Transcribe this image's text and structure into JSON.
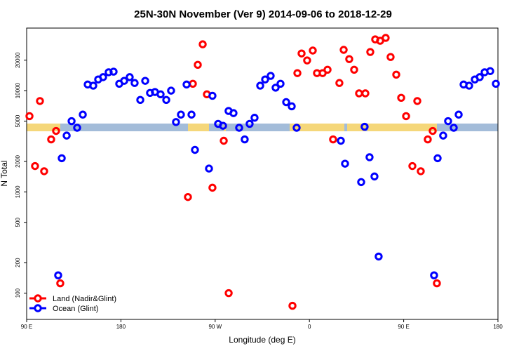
{
  "chart_data": {
    "type": "scatter",
    "title": "25N-30N November (Ver 9)   2014-09-06 to 2018-12-29",
    "x_label": "Longitude (deg E)",
    "y_label": "N Total",
    "log_y": true,
    "legend": "bottom-left",
    "xlim": [
      90,
      540
    ],
    "xticks": [
      {
        "value": 90,
        "label": "90 E"
      },
      180,
      {
        "value": 270,
        "label": "90 W"
      },
      {
        "value": 360,
        "label": "0"
      },
      {
        "value": 450,
        "label": "90 E"
      },
      {
        "value": 540,
        "label": "180"
      }
    ],
    "ylim": [
      55,
      41500
    ],
    "yticks": [
      100,
      200,
      500,
      1000,
      2000,
      5000,
      10000,
      20000
    ],
    "series": [
      {
        "name": "Land (Nadir&Glint)",
        "color": "#ff0000",
        "x": [
          92.7,
          98.0,
          102.7,
          106.7,
          113.4,
          118.1,
          122.1,
          244.0,
          248.7,
          253.4,
          258.1,
          262.1,
          267.4,
          278.2,
          282.9,
          343.8,
          348.5,
          352.5,
          357.8,
          363.2,
          367.2,
          372.6,
          377.3,
          382.6,
          388.6,
          392.7,
          398.0,
          402.7,
          407.4,
          413.4,
          418.1,
          422.8,
          427.5,
          432.8,
          437.5,
          442.9,
          447.6,
          452.3,
          458.3,
          463.0,
          466.3,
          473.0,
          477.7,
          481.7
        ],
        "values": [
          5600,
          1800,
          7900,
          1600,
          3300,
          4000,
          125,
          890,
          11700,
          18000,
          28700,
          9200,
          1100,
          3200,
          100,
          75,
          14900,
          23300,
          19900,
          24900,
          14900,
          14900,
          16100,
          3300,
          11900,
          25300,
          20500,
          16100,
          9400,
          9400,
          24100,
          32100,
          31100,
          33200,
          21500,
          14400,
          8500,
          5600,
          1800,
          7900,
          1600,
          3300,
          4000,
          125
        ]
      },
      {
        "name": "Ocean (Glint)",
        "color": "#0000ff",
        "x": [
          120.1,
          123.5,
          128.2,
          132.9,
          138.2,
          143.6,
          148.3,
          153.6,
          158.3,
          163.0,
          168.3,
          173.0,
          178.4,
          183.1,
          188.4,
          193.1,
          198.5,
          203.2,
          207.8,
          212.5,
          217.9,
          223.3,
          227.9,
          232.6,
          237.3,
          242.7,
          247.4,
          250.7,
          264.1,
          267.4,
          272.8,
          277.5,
          282.8,
          287.5,
          292.9,
          298.2,
          302.9,
          307.6,
          313.0,
          317.7,
          323.0,
          327.7,
          332.4,
          337.8,
          343.1,
          347.8,
          390.0,
          394.0,
          409.4,
          412.7,
          417.4,
          422.1,
          426.1,
          479.0,
          482.4,
          487.7,
          492.4,
          497.8,
          502.5,
          507.2,
          512.5,
          517.9,
          522.6,
          527.3,
          532.6,
          538.0
        ],
        "values": [
          150,
          2150,
          3600,
          5000,
          4300,
          5800,
          11500,
          11200,
          12900,
          13600,
          15200,
          15400,
          11700,
          12500,
          13600,
          11900,
          8100,
          12500,
          9500,
          9700,
          9200,
          8100,
          10000,
          4900,
          5800,
          11500,
          5800,
          2600,
          1700,
          8900,
          4700,
          4500,
          6300,
          6000,
          4300,
          3300,
          4700,
          5400,
          11200,
          12900,
          14000,
          10700,
          11700,
          7700,
          7000,
          4300,
          3200,
          1900,
          1250,
          4400,
          2200,
          1420,
          230,
          150,
          2150,
          3600,
          5000,
          4300,
          5800,
          11500,
          11200,
          12900,
          13600,
          15200,
          15600,
          11700
        ]
      }
    ]
  }
}
